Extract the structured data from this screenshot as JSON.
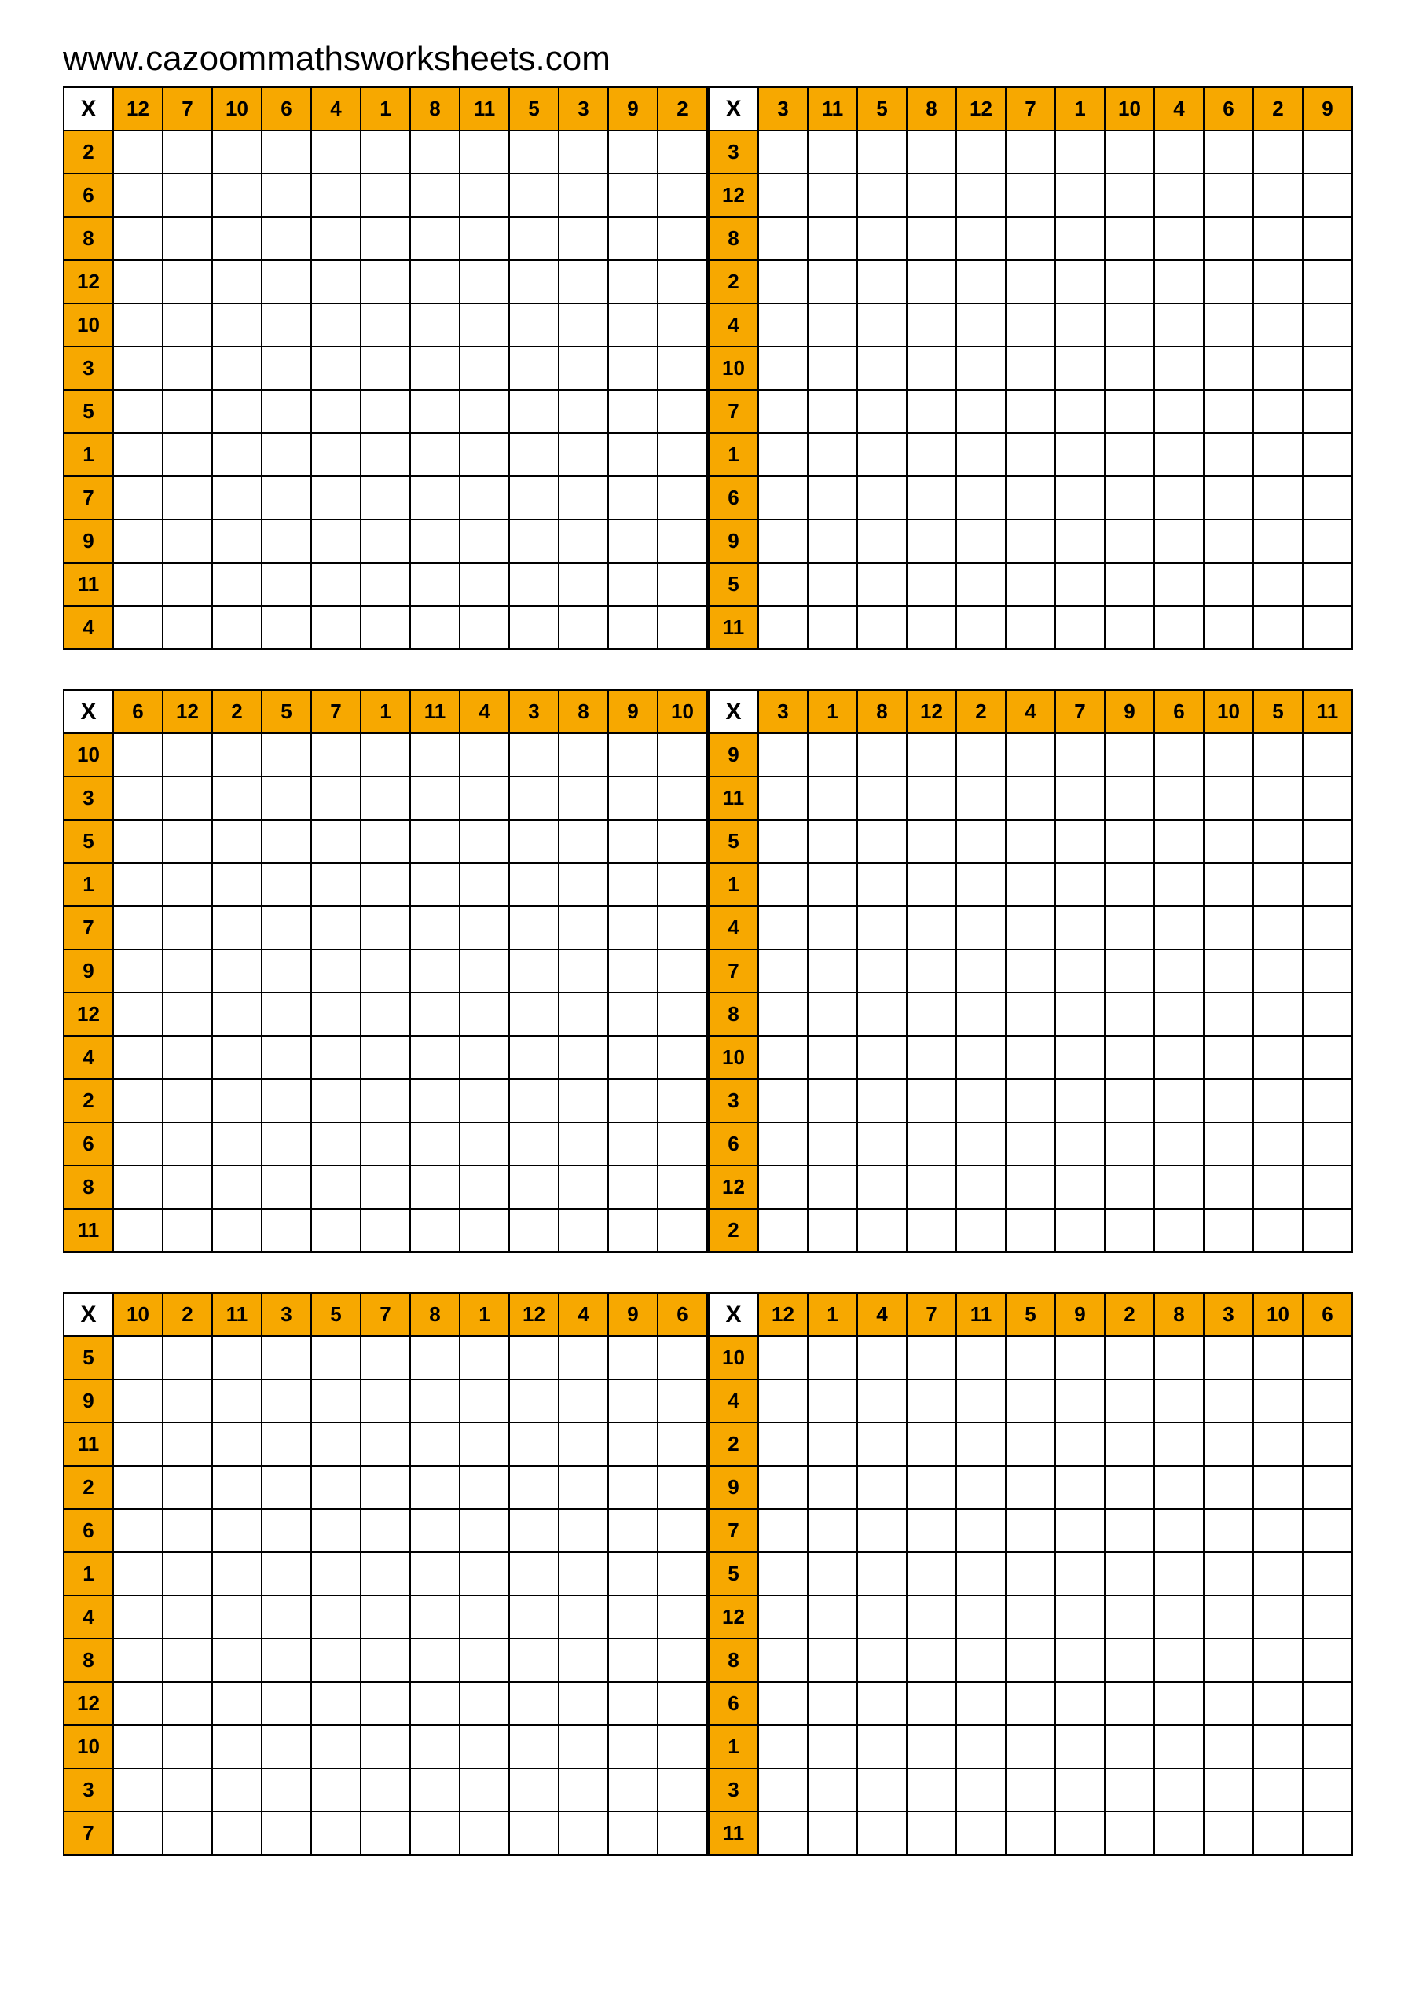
{
  "header_url": "www.cazoommathsworksheets.com",
  "colors": {
    "header_bg": "#f7a800",
    "border": "#000000",
    "background": "#ffffff"
  },
  "corner_symbol": "X",
  "grid_rows": [
    {
      "left": {
        "col_headers": [
          12,
          7,
          10,
          6,
          4,
          1,
          8,
          11,
          5,
          3,
          9,
          2
        ],
        "row_headers": [
          2,
          6,
          8,
          12,
          10,
          3,
          5,
          1,
          7,
          9,
          11,
          4
        ]
      },
      "right": {
        "col_headers": [
          3,
          11,
          5,
          8,
          12,
          7,
          1,
          10,
          4,
          6,
          2,
          9
        ],
        "row_headers": [
          3,
          12,
          8,
          2,
          4,
          10,
          7,
          1,
          6,
          9,
          5,
          11
        ]
      }
    },
    {
      "left": {
        "col_headers": [
          6,
          12,
          2,
          5,
          7,
          1,
          11,
          4,
          3,
          8,
          9,
          10
        ],
        "row_headers": [
          10,
          3,
          5,
          1,
          7,
          9,
          12,
          4,
          2,
          6,
          8,
          11
        ]
      },
      "right": {
        "col_headers": [
          3,
          1,
          8,
          12,
          2,
          4,
          7,
          9,
          6,
          10,
          5,
          11
        ],
        "row_headers": [
          9,
          11,
          5,
          1,
          4,
          7,
          8,
          10,
          3,
          6,
          12,
          2
        ]
      }
    },
    {
      "left": {
        "col_headers": [
          10,
          2,
          11,
          3,
          5,
          7,
          8,
          1,
          12,
          4,
          9,
          6
        ],
        "row_headers": [
          5,
          9,
          11,
          2,
          6,
          1,
          4,
          8,
          12,
          10,
          3,
          7
        ]
      },
      "right": {
        "col_headers": [
          12,
          1,
          4,
          7,
          11,
          5,
          9,
          2,
          8,
          3,
          10,
          6
        ],
        "row_headers": [
          10,
          4,
          2,
          9,
          7,
          5,
          12,
          8,
          6,
          1,
          3,
          11
        ]
      }
    }
  ]
}
